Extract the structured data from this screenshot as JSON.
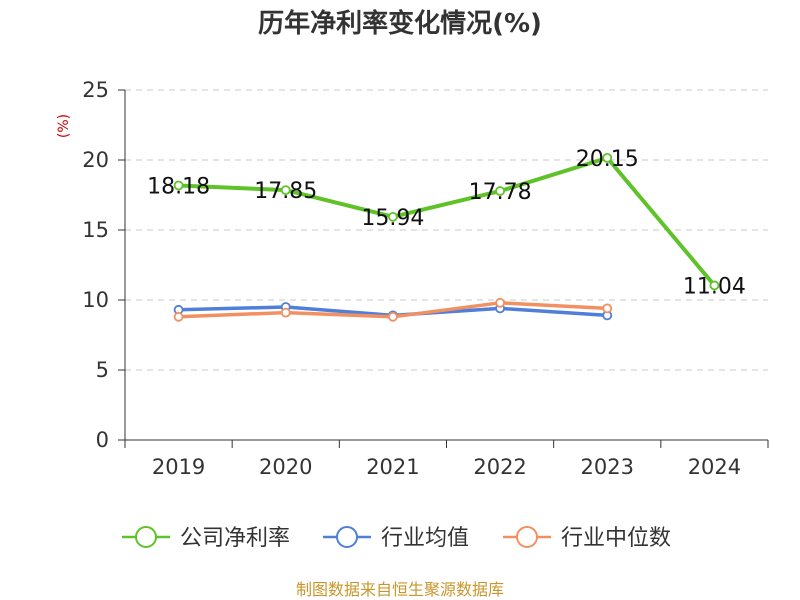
{
  "chart_data": {
    "type": "line",
    "title": "历年净利率变化情况(%)",
    "ylabel": "(%)",
    "categories": [
      "2019",
      "2020",
      "2021",
      "2022",
      "2023",
      "2024"
    ],
    "ylim": [
      0,
      25
    ],
    "yticks": [
      0,
      5,
      10,
      15,
      20,
      25
    ],
    "grid": true,
    "legend_position": "bottom",
    "series": [
      {
        "name": "公司净利率",
        "color": "#5ec228",
        "values": [
          18.18,
          17.85,
          15.94,
          17.78,
          20.15,
          11.04
        ],
        "data_labels": [
          "18.18",
          "17.85",
          "15.94",
          "17.78",
          "20.15",
          "11.04"
        ]
      },
      {
        "name": "行业均值",
        "color": "#4f7fd9",
        "values": [
          9.3,
          9.5,
          8.9,
          9.4,
          8.9,
          null
        ]
      },
      {
        "name": "行业中位数",
        "color": "#f29062",
        "values": [
          8.8,
          9.1,
          8.8,
          9.8,
          9.4,
          null
        ]
      }
    ]
  },
  "source": "制图数据来自恒生聚源数据库"
}
